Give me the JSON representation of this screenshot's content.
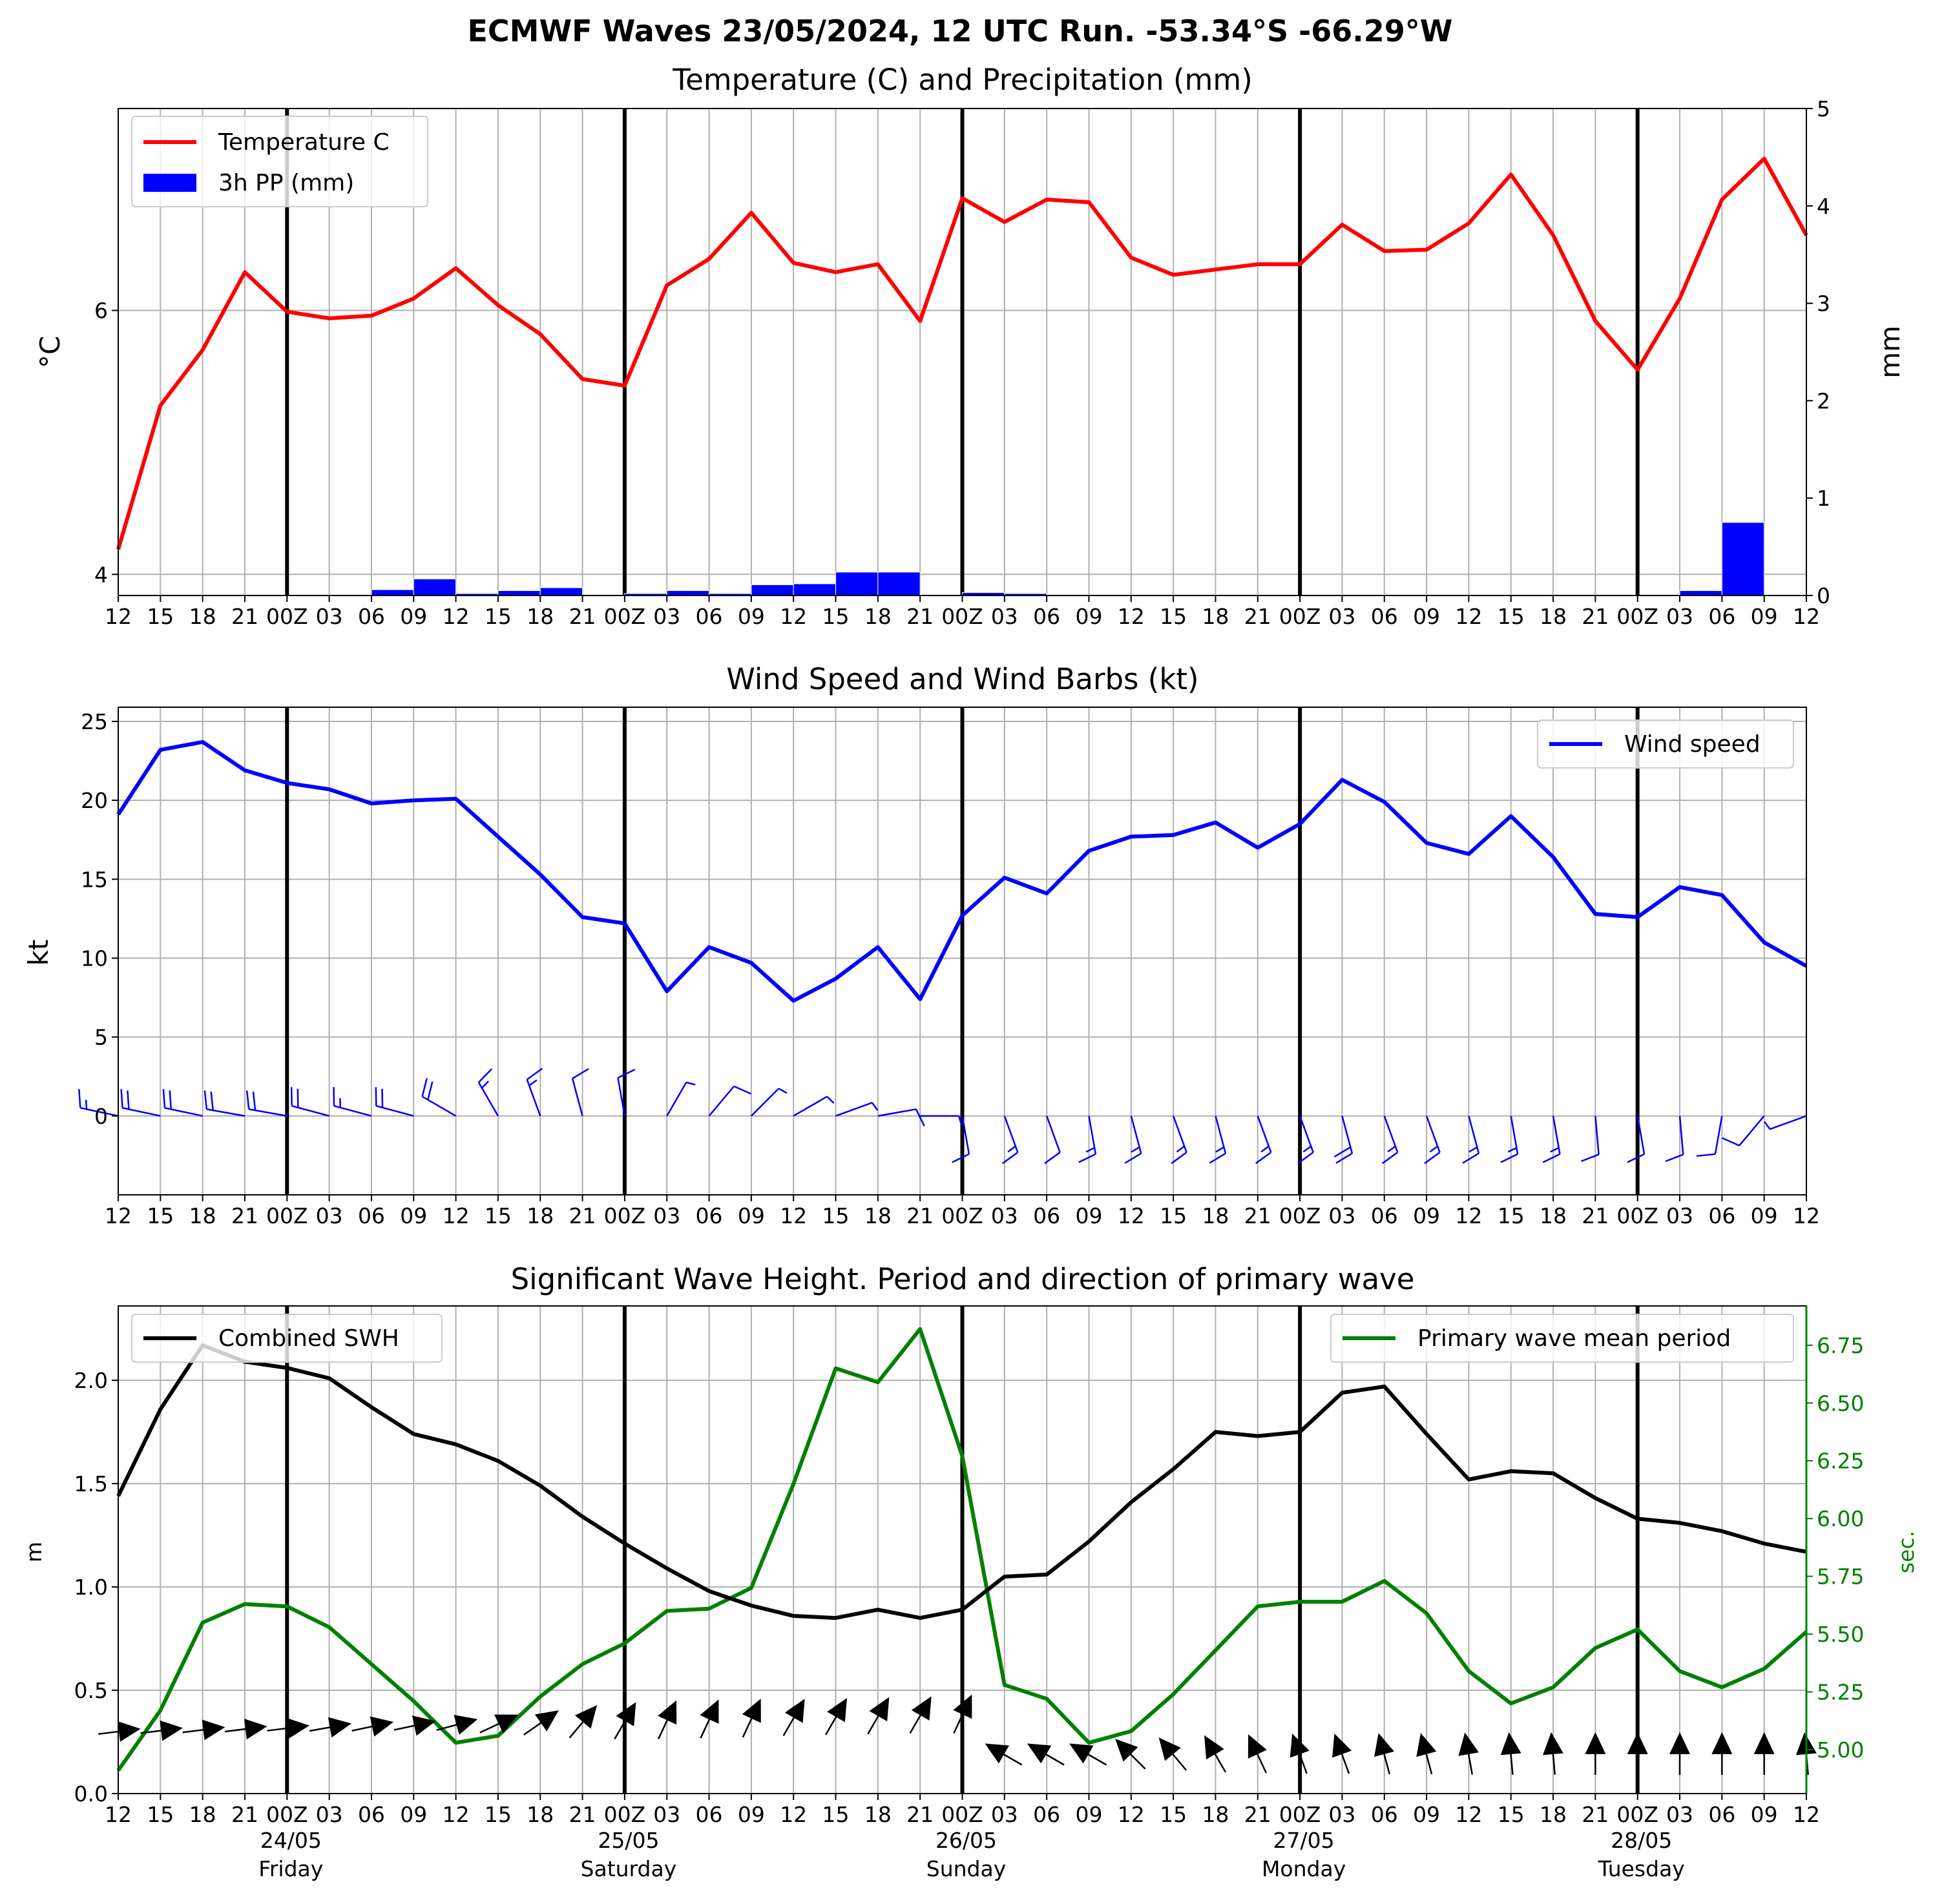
{
  "figure_title": "ECMWF Waves 23/05/2024, 12 UTC Run. -53.34°S -66.29°W",
  "time_ticks": [
    "12",
    "15",
    "18",
    "21",
    "00Z",
    "03",
    "06",
    "09",
    "12",
    "15",
    "18",
    "21",
    "00Z",
    "03",
    "06",
    "09",
    "12",
    "15",
    "18",
    "21",
    "00Z",
    "03",
    "06",
    "09",
    "12",
    "15",
    "18",
    "21",
    "00Z",
    "03",
    "06",
    "09",
    "12",
    "15",
    "18",
    "21",
    "00Z",
    "03",
    "06",
    "09",
    "12"
  ],
  "day_labels": [
    {
      "date": "24/05",
      "day": "Friday"
    },
    {
      "date": "25/05",
      "day": "Saturday"
    },
    {
      "date": "26/05",
      "day": "Sunday"
    },
    {
      "date": "27/05",
      "day": "Monday"
    },
    {
      "date": "28/05",
      "day": "Tuesday"
    }
  ],
  "colors": {
    "temperature": "#ff0000",
    "precip": "#0000ff",
    "wind": "#0000ff",
    "swh": "#000000",
    "period": "#008000",
    "grid": "#b0b0b0"
  },
  "chart_data": [
    {
      "type": "line",
      "title": "Temperature (C) and Precipitation (mm)",
      "ylabel": "$^\\circ$C",
      "ylabel_display": "°C",
      "y2label": "mm",
      "ylim": [
        3.84,
        7.53
      ],
      "y2lim": [
        0,
        5
      ],
      "yticks": [
        4,
        6
      ],
      "y2ticks": [
        0,
        1,
        2,
        3,
        4,
        5
      ],
      "grid": true,
      "legend": {
        "position": "top-left",
        "entries": [
          "Temperature C",
          "3h PP (mm)"
        ]
      },
      "series": [
        {
          "name": "Temperature C",
          "values": [
            4.19,
            5.28,
            5.7,
            6.29,
            5.99,
            5.94,
            5.96,
            6.09,
            6.32,
            6.04,
            5.82,
            5.48,
            5.43,
            6.19,
            6.39,
            6.74,
            6.36,
            6.29,
            6.35,
            5.92,
            6.85,
            6.67,
            6.84,
            6.82,
            6.4,
            6.27,
            6.31,
            6.35,
            6.35,
            6.65,
            6.45,
            6.46,
            6.66,
            7.03,
            6.57,
            5.92,
            5.55,
            6.09,
            6.84,
            7.15,
            6.57
          ]
        },
        {
          "name": "3h PP (mm)",
          "values": [
            0,
            0,
            0,
            0,
            0,
            0,
            0,
            0.06,
            0.17,
            0.02,
            0.05,
            0.08,
            0,
            0.02,
            0.05,
            0.02,
            0.11,
            0.12,
            0.24,
            0.24,
            0,
            0.03,
            0.02,
            0,
            0,
            0,
            0,
            0,
            0,
            0,
            0,
            0,
            0,
            0,
            0,
            0,
            0,
            0,
            0.05,
            0.75,
            0
          ]
        }
      ]
    },
    {
      "type": "line",
      "title": "Wind Speed and Wind Barbs (kt)",
      "ylabel": "kt",
      "ylim": [
        -5,
        25.9
      ],
      "yticks": [
        0,
        5,
        10,
        15,
        20,
        25
      ],
      "grid": true,
      "legend": {
        "position": "top-right",
        "entries": [
          "Wind speed"
        ]
      },
      "series": [
        {
          "name": "Wind speed",
          "values": [
            19.1,
            23.2,
            23.7,
            21.9,
            21.1,
            20.7,
            19.8,
            20.0,
            20.1,
            17.7,
            15.3,
            12.6,
            12.2,
            7.9,
            10.7,
            9.7,
            7.3,
            8.7,
            10.7,
            7.4,
            12.7,
            15.1,
            14.1,
            16.8,
            17.7,
            17.8,
            18.6,
            17.0,
            18.5,
            21.3,
            19.9,
            17.3,
            16.6,
            19.0,
            16.4,
            12.8,
            12.6,
            14.5,
            14.0,
            11.0,
            9.5
          ]
        }
      ],
      "barb_directions_deg": [
        282,
        282,
        282,
        280,
        280,
        285,
        285,
        285,
        300,
        330,
        340,
        345,
        350,
        30,
        40,
        45,
        60,
        70,
        80,
        90,
        170,
        160,
        160,
        170,
        165,
        160,
        165,
        160,
        160,
        165,
        160,
        160,
        165,
        170,
        170,
        175,
        170,
        175,
        190,
        220,
        250
      ]
    },
    {
      "type": "line",
      "title": "Significant Wave Height. Period and direction of primary wave",
      "ylabel": "m",
      "y2label": "sec.",
      "ylim": [
        0,
        2.36
      ],
      "y2lim": [
        4.81,
        6.92
      ],
      "yticks": [
        0.0,
        0.5,
        1.0,
        1.5,
        2.0
      ],
      "y2ticks": [
        5.0,
        5.25,
        5.5,
        5.75,
        6.0,
        6.25,
        6.5,
        6.75
      ],
      "grid": true,
      "legend_left": {
        "position": "top-left",
        "entries": [
          "Combined SWH"
        ]
      },
      "legend_right": {
        "position": "top-right",
        "entries": [
          "Primary wave mean period"
        ]
      },
      "series": [
        {
          "name": "Combined SWH",
          "values": [
            1.44,
            1.86,
            2.17,
            2.09,
            2.06,
            2.01,
            1.87,
            1.74,
            1.69,
            1.61,
            1.49,
            1.34,
            1.21,
            1.09,
            0.98,
            0.91,
            0.86,
            0.85,
            0.89,
            0.85,
            0.89,
            1.05,
            1.06,
            1.22,
            1.41,
            1.57,
            1.75,
            1.73,
            1.75,
            1.94,
            1.97,
            1.74,
            1.52,
            1.56,
            1.55,
            1.43,
            1.33,
            1.31,
            1.27,
            1.21,
            1.17
          ]
        },
        {
          "name": "Primary wave mean period",
          "values": [
            4.91,
            5.17,
            5.55,
            5.63,
            5.62,
            5.53,
            5.37,
            5.21,
            5.03,
            5.06,
            5.23,
            5.37,
            5.46,
            5.6,
            5.61,
            5.7,
            6.15,
            6.65,
            6.59,
            6.82,
            6.27,
            5.28,
            5.22,
            5.03,
            5.08,
            5.24,
            5.43,
            5.62,
            5.64,
            5.64,
            5.73,
            5.59,
            5.34,
            5.2,
            5.27,
            5.44,
            5.52,
            5.34,
            5.27,
            5.35,
            5.51
          ]
        }
      ],
      "direction_arrows_deg": [
        83,
        83,
        83,
        83,
        83,
        80,
        78,
        78,
        75,
        65,
        55,
        40,
        30,
        25,
        25,
        25,
        30,
        30,
        30,
        30,
        25,
        300,
        300,
        300,
        315,
        320,
        330,
        335,
        340,
        340,
        345,
        345,
        350,
        355,
        355,
        0,
        0,
        0,
        0,
        0,
        355
      ]
    }
  ]
}
